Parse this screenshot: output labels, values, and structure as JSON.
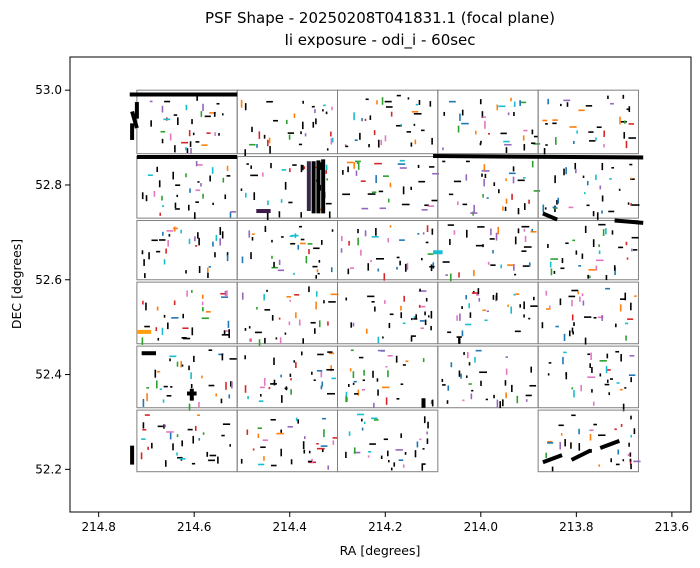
{
  "chart_data": {
    "type": "scatter",
    "title": "PSF Shape - 20250208T041831.1 (focal plane)",
    "subtitle": "Ii exposure - odi_i - 60sec",
    "xlabel": "RA [degrees]",
    "ylabel": "DEC [degrees]",
    "x_inverted": true,
    "xlim": [
      214.86,
      213.56
    ],
    "ylim": [
      52.11,
      53.07
    ],
    "grid": false,
    "xticks": [
      214.8,
      214.6,
      214.4,
      214.2,
      214.0,
      213.8,
      213.6
    ],
    "xtick_labels": [
      "214.8",
      "214.6",
      "214.4",
      "214.2",
      "214.0",
      "213.8",
      "213.6"
    ],
    "yticks": [
      52.2,
      52.4,
      52.6,
      52.8,
      53.0
    ],
    "ytick_labels": [
      "52.2",
      "52.4",
      "52.6",
      "52.8",
      "53.0"
    ],
    "frame_color": "#808080",
    "frames": [
      {
        "ra": [
          214.72,
          214.51
        ],
        "dec": [
          52.866,
          53.0
        ]
      },
      {
        "ra": [
          214.51,
          214.3
        ],
        "dec": [
          52.866,
          53.0
        ]
      },
      {
        "ra": [
          214.3,
          214.09
        ],
        "dec": [
          52.866,
          53.0
        ]
      },
      {
        "ra": [
          214.09,
          213.88
        ],
        "dec": [
          52.866,
          53.0
        ]
      },
      {
        "ra": [
          213.88,
          213.67
        ],
        "dec": [
          52.866,
          53.0
        ]
      },
      {
        "ra": [
          214.72,
          214.51
        ],
        "dec": [
          52.73,
          52.86
        ]
      },
      {
        "ra": [
          214.51,
          214.3
        ],
        "dec": [
          52.73,
          52.86
        ]
      },
      {
        "ra": [
          214.3,
          214.09
        ],
        "dec": [
          52.73,
          52.86
        ]
      },
      {
        "ra": [
          214.09,
          213.88
        ],
        "dec": [
          52.73,
          52.86
        ]
      },
      {
        "ra": [
          213.88,
          213.67
        ],
        "dec": [
          52.73,
          52.86
        ]
      },
      {
        "ra": [
          214.72,
          214.51
        ],
        "dec": [
          52.6,
          52.725
        ]
      },
      {
        "ra": [
          214.51,
          214.3
        ],
        "dec": [
          52.6,
          52.725
        ]
      },
      {
        "ra": [
          214.3,
          214.09
        ],
        "dec": [
          52.6,
          52.725
        ]
      },
      {
        "ra": [
          214.09,
          213.88
        ],
        "dec": [
          52.6,
          52.725
        ]
      },
      {
        "ra": [
          213.88,
          213.67
        ],
        "dec": [
          52.6,
          52.725
        ]
      },
      {
        "ra": [
          214.72,
          214.51
        ],
        "dec": [
          52.465,
          52.595
        ]
      },
      {
        "ra": [
          214.51,
          214.3
        ],
        "dec": [
          52.465,
          52.595
        ]
      },
      {
        "ra": [
          214.3,
          214.09
        ],
        "dec": [
          52.465,
          52.595
        ]
      },
      {
        "ra": [
          214.09,
          213.88
        ],
        "dec": [
          52.465,
          52.595
        ]
      },
      {
        "ra": [
          213.88,
          213.67
        ],
        "dec": [
          52.465,
          52.595
        ]
      },
      {
        "ra": [
          214.72,
          214.51
        ],
        "dec": [
          52.33,
          52.46
        ]
      },
      {
        "ra": [
          214.51,
          214.3
        ],
        "dec": [
          52.33,
          52.46
        ]
      },
      {
        "ra": [
          214.3,
          214.09
        ],
        "dec": [
          52.33,
          52.46
        ]
      },
      {
        "ra": [
          214.09,
          213.88
        ],
        "dec": [
          52.33,
          52.46
        ]
      },
      {
        "ra": [
          213.88,
          213.67
        ],
        "dec": [
          52.33,
          52.46
        ]
      },
      {
        "ra": [
          214.72,
          214.51
        ],
        "dec": [
          52.195,
          52.325
        ]
      },
      {
        "ra": [
          214.51,
          214.3
        ],
        "dec": [
          52.195,
          52.325
        ]
      },
      {
        "ra": [
          214.3,
          214.09
        ],
        "dec": [
          52.195,
          52.325
        ]
      },
      {
        "ra": [
          213.88,
          213.67
        ],
        "dec": [
          52.195,
          52.325
        ]
      }
    ],
    "psf_colors": [
      "#000000",
      "#000000",
      "#000000",
      "#000000",
      "#000000",
      "#000000",
      "#d62728",
      "#ff7f0e",
      "#2ca02c",
      "#1f77b4",
      "#9467bd",
      "#17becf",
      "#e377c2"
    ],
    "psf_density": 34,
    "heavy_marks": [
      {
        "ra1": 214.735,
        "dec1": 52.991,
        "ra2": 214.51,
        "dec2": 52.991,
        "color": "#000000"
      },
      {
        "ra1": 214.72,
        "dec1": 52.859,
        "ra2": 214.51,
        "dec2": 52.859,
        "color": "#000000"
      },
      {
        "ra1": 214.1,
        "dec1": 52.861,
        "ra2": 213.66,
        "dec2": 52.858,
        "color": "#000000"
      },
      {
        "ra1": 214.33,
        "dec1": 52.854,
        "ra2": 214.33,
        "dec2": 52.74,
        "color": "#000000"
      },
      {
        "ra1": 214.34,
        "dec1": 52.852,
        "ra2": 214.34,
        "dec2": 52.74,
        "color": "#000000"
      },
      {
        "ra1": 214.35,
        "dec1": 52.85,
        "ra2": 214.35,
        "dec2": 52.74,
        "color": "#000000"
      },
      {
        "ra1": 214.36,
        "dec1": 52.85,
        "ra2": 214.36,
        "dec2": 52.745,
        "color": "#3a2a4a"
      },
      {
        "ra1": 214.47,
        "dec1": 52.745,
        "ra2": 214.44,
        "dec2": 52.745,
        "color": "#3d1a4a"
      },
      {
        "ra1": 214.73,
        "dec1": 52.93,
        "ra2": 214.73,
        "dec2": 52.895,
        "color": "#000000"
      },
      {
        "ra1": 214.73,
        "dec1": 52.955,
        "ra2": 214.72,
        "dec2": 52.92,
        "color": "#000000"
      },
      {
        "ra1": 214.72,
        "dec1": 52.975,
        "ra2": 214.72,
        "dec2": 52.94,
        "color": "#000000"
      },
      {
        "ra1": 214.72,
        "dec1": 52.49,
        "ra2": 214.69,
        "dec2": 52.49,
        "color": "#ff9f0e"
      },
      {
        "ra1": 214.71,
        "dec1": 52.445,
        "ra2": 214.68,
        "dec2": 52.445,
        "color": "#000000"
      },
      {
        "ra1": 214.605,
        "dec1": 52.37,
        "ra2": 214.605,
        "dec2": 52.345,
        "color": "#000000"
      },
      {
        "ra1": 214.615,
        "dec1": 52.36,
        "ra2": 214.595,
        "dec2": 52.36,
        "color": "#000000"
      },
      {
        "ra1": 214.73,
        "dec1": 52.25,
        "ra2": 214.73,
        "dec2": 52.21,
        "color": "#000000"
      },
      {
        "ra1": 214.12,
        "dec1": 52.35,
        "ra2": 214.12,
        "dec2": 52.33,
        "color": "#000000"
      },
      {
        "ra1": 213.87,
        "dec1": 52.74,
        "ra2": 213.84,
        "dec2": 52.727,
        "color": "#000000"
      },
      {
        "ra1": 213.72,
        "dec1": 52.725,
        "ra2": 213.66,
        "dec2": 52.72,
        "color": "#000000"
      },
      {
        "ra1": 213.87,
        "dec1": 52.215,
        "ra2": 213.83,
        "dec2": 52.23,
        "color": "#000000"
      },
      {
        "ra1": 213.81,
        "dec1": 52.22,
        "ra2": 213.77,
        "dec2": 52.24,
        "color": "#000000"
      },
      {
        "ra1": 213.75,
        "dec1": 52.245,
        "ra2": 213.71,
        "dec2": 52.26,
        "color": "#000000"
      },
      {
        "ra1": 214.1,
        "dec1": 52.658,
        "ra2": 214.08,
        "dec2": 52.658,
        "color": "#17becf"
      }
    ]
  }
}
